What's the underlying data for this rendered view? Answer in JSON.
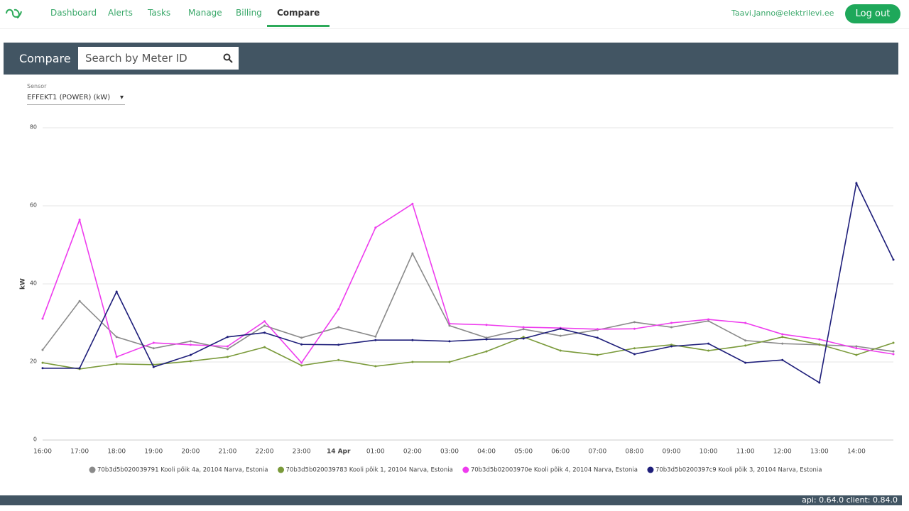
{
  "nav": {
    "links": [
      "Dashboard",
      "Alerts",
      "Tasks",
      "Manage",
      "Billing",
      "Compare"
    ],
    "active": 5,
    "user": "Taavi.Janno@elektrilevi.ee",
    "logout": "Log out"
  },
  "header": {
    "title": "Compare",
    "search_placeholder": "Search by Meter ID"
  },
  "sensor": {
    "label": "Sensor",
    "value": "EFFEKT1 (POWER) (kW)"
  },
  "chart_data": {
    "type": "line",
    "ylabel": "kW",
    "categories": [
      "16:00",
      "17:00",
      "18:00",
      "19:00",
      "20:00",
      "21:00",
      "22:00",
      "23:00",
      "14 Apr",
      "01:00",
      "02:00",
      "03:00",
      "04:00",
      "05:00",
      "06:00",
      "07:00",
      "08:00",
      "09:00",
      "10:00",
      "11:00",
      "12:00",
      "13:00",
      "14:00",
      null
    ],
    "ylim": [
      0,
      80
    ],
    "yticks": [
      0,
      20,
      40,
      60,
      80
    ],
    "grid": true,
    "series": [
      {
        "name": "70b3d5b020039791 Kooli põik 4a, 20104 Narva, Estonia",
        "color": "#8a8a8a",
        "values": [
          23.1,
          35.6,
          26.4,
          23.5,
          25.3,
          23.3,
          29.3,
          26.2,
          28.9,
          26.5,
          47.8,
          29.3,
          26.2,
          28.4,
          26.7,
          28.2,
          30.2,
          28.9,
          30.5,
          25.5,
          24.7,
          24.4,
          24.0,
          22.7
        ]
      },
      {
        "name": "70b3d5b020039783 Kooli põik 1, 20104 Narva, Estonia",
        "color": "#7a9a3a",
        "values": [
          19.8,
          18.2,
          19.5,
          19.3,
          20.2,
          21.3,
          23.8,
          19.1,
          20.5,
          18.9,
          20.0,
          20.0,
          22.7,
          26.4,
          22.9,
          21.8,
          23.5,
          24.4,
          22.9,
          24.2,
          26.4,
          24.5,
          21.8,
          24.9
        ]
      },
      {
        "name": "70b3d5b02003970e Kooli põik 4, 20104 Narva, Estonia",
        "color": "#ee3cee",
        "values": [
          31.1,
          56.4,
          21.3,
          24.9,
          24.4,
          24.0,
          30.4,
          19.8,
          33.5,
          54.4,
          60.5,
          29.8,
          29.5,
          28.9,
          28.7,
          28.4,
          28.5,
          30.0,
          30.9,
          30.0,
          27.1,
          25.8,
          23.5,
          22.0
        ]
      },
      {
        "name": "70b3d5b0200397c9 Kooli põik 3, 20104 Narva, Estonia",
        "color": "#1e1e7a",
        "values": [
          18.4,
          18.4,
          38.0,
          18.7,
          21.8,
          26.4,
          27.5,
          24.5,
          24.4,
          25.6,
          25.6,
          25.3,
          25.8,
          26.0,
          28.5,
          26.2,
          22.0,
          24.0,
          24.7,
          19.8,
          20.5,
          14.7,
          65.8,
          46.2
        ]
      }
    ]
  },
  "footer": {
    "version": "api: 0.64.0  client: 0.84.0"
  }
}
